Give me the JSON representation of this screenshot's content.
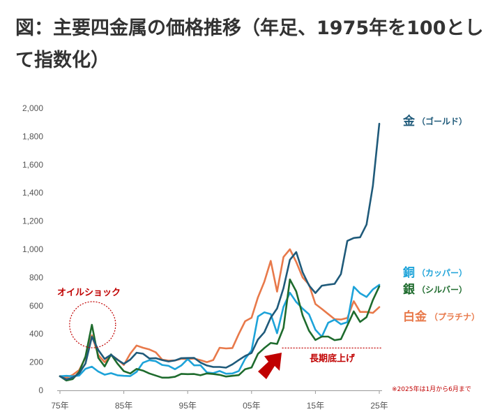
{
  "chart_data": {
    "type": "line",
    "title": "図：主要四金属の価格推移（年足、1975年を100として指数化）",
    "xlabel": "",
    "ylabel": "",
    "x": [
      1975,
      1976,
      1977,
      1978,
      1979,
      1980,
      1981,
      1982,
      1983,
      1984,
      1985,
      1986,
      1987,
      1988,
      1989,
      1990,
      1991,
      1992,
      1993,
      1994,
      1995,
      1996,
      1997,
      1998,
      1999,
      2000,
      2001,
      2002,
      2003,
      2004,
      2005,
      2006,
      2007,
      2008,
      2009,
      2010,
      2011,
      2012,
      2013,
      2014,
      2015,
      2016,
      2017,
      2018,
      2019,
      2020,
      2021,
      2022,
      2023,
      2024,
      2025
    ],
    "x_tick_values": [
      1975,
      1985,
      1995,
      2005,
      2015,
      2025
    ],
    "x_tick_labels": [
      "75年",
      "85年",
      "95年",
      "05年",
      "15年",
      "25年"
    ],
    "y_ticks": [
      0,
      200,
      400,
      600,
      800,
      1000,
      1200,
      1400,
      1600,
      1800,
      2000
    ],
    "y_tick_labels": [
      "0",
      "200",
      "400",
      "600",
      "800",
      "1,000",
      "1,200",
      "1,400",
      "1,600",
      "1,800",
      "2,000"
    ],
    "xlim": [
      1975,
      2025
    ],
    "ylim": [
      0,
      2000
    ],
    "grid": false,
    "series": [
      {
        "name": "金",
        "sub": "（ゴールド）",
        "color": "#1f5a7a",
        "values": [
          100,
          77,
          91,
          120,
          190,
          380,
          286,
          223,
          253,
          217,
          188,
          218,
          267,
          260,
          226,
          228,
          215,
          205,
          212,
          228,
          229,
          230,
          197,
          176,
          166,
          166,
          161,
          184,
          215,
          244,
          265,
          361,
          412,
          515,
          580,
          725,
          925,
          980,
          837,
          744,
          690,
          742,
          749,
          755,
          825,
          1060,
          1080,
          1085,
          1175,
          1450,
          1890
        ]
      },
      {
        "name": "銅",
        "sub": "（カッパー）",
        "color": "#1da3d9",
        "values": [
          100,
          103,
          100,
          105,
          153,
          168,
          133,
          111,
          122,
          107,
          103,
          101,
          131,
          196,
          214,
          207,
          180,
          174,
          150,
          176,
          222,
          177,
          178,
          127,
          122,
          137,
          118,
          120,
          137,
          224,
          283,
          524,
          553,
          541,
          405,
          592,
          692,
          626,
          579,
          539,
          429,
          380,
          479,
          501,
          469,
          483,
          734,
          688,
          662,
          716,
          748
        ]
      },
      {
        "name": "銀",
        "sub": "（シルバー）",
        "color": "#1e6b2d",
        "values": [
          100,
          70,
          80,
          130,
          240,
          465,
          230,
          170,
          255,
          190,
          136,
          120,
          152,
          140,
          120,
          105,
          90,
          90,
          96,
          117,
          115,
          116,
          107,
          120,
          116,
          110,
          98,
          103,
          108,
          150,
          162,
          259,
          300,
          336,
          329,
          443,
          786,
          701,
          530,
          423,
          357,
          381,
          381,
          356,
          363,
          460,
          560,
          485,
          519,
          640,
          737
        ]
      },
      {
        "name": "白金",
        "sub": "（プラチナ）",
        "color": "#e8794a",
        "values": [
          100,
          90,
          110,
          143,
          232,
          390,
          250,
          200,
          250,
          220,
          180,
          260,
          318,
          302,
          290,
          270,
          218,
          211,
          212,
          224,
          222,
          225,
          214,
          200,
          215,
          302,
          297,
          300,
          400,
          490,
          515,
          660,
          770,
          918,
          700,
          945,
          1000,
          910,
          800,
          750,
          612,
          577,
          541,
          505,
          502,
          514,
          632,
          556,
          556,
          549,
          590
        ]
      }
    ],
    "annotations": [
      {
        "text": "オイルショック",
        "x": 1980
      },
      {
        "text": "長期底上げ",
        "level": 300
      }
    ],
    "note": "※2025年は1月から6月まで"
  }
}
